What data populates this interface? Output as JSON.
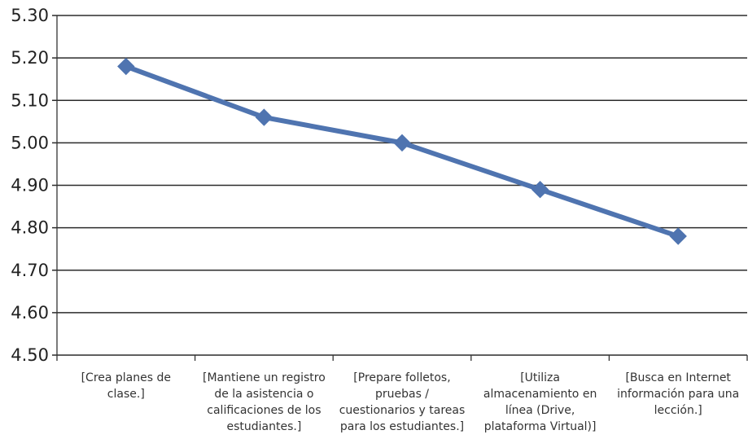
{
  "chart_data": {
    "type": "line",
    "title": "",
    "xlabel": "",
    "ylabel": "",
    "categories": [
      "[Crea planes de clase.]",
      "[Mantiene un registro de la asistencia o calificaciones de los estudiantes.]",
      "[Prepare folletos, pruebas / cuestionarios y tareas para los estudiantes.]",
      "[Utiliza almacenamiento en línea (Drive, plataforma Virtual)]",
      "[Busca en Internet información para una lección.]"
    ],
    "category_label_lines": [
      [
        "[Crea planes de",
        "clase.]"
      ],
      [
        "[Mantiene un registro",
        "de la asistencia o",
        "calificaciones de los",
        "estudiantes.]"
      ],
      [
        "[Prepare folletos,",
        "pruebas /",
        "cuestionarios y tareas",
        "para los estudiantes.]"
      ],
      [
        "[Utiliza",
        "almacenamiento en",
        "línea (Drive,",
        "plataforma Virtual)]"
      ],
      [
        "[Busca en Internet",
        "información para una",
        "lección.]"
      ]
    ],
    "series": [
      {
        "values": [
          5.18,
          5.06,
          5.0,
          4.89,
          4.78
        ],
        "color": "#4f74b0",
        "marker": "diamond"
      }
    ],
    "ylim": [
      4.5,
      5.3
    ],
    "yticks": [
      "4.50",
      "4.60",
      "4.70",
      "4.80",
      "4.90",
      "5.00",
      "5.10",
      "5.20",
      "5.30"
    ],
    "grid": true,
    "legend": "none"
  }
}
